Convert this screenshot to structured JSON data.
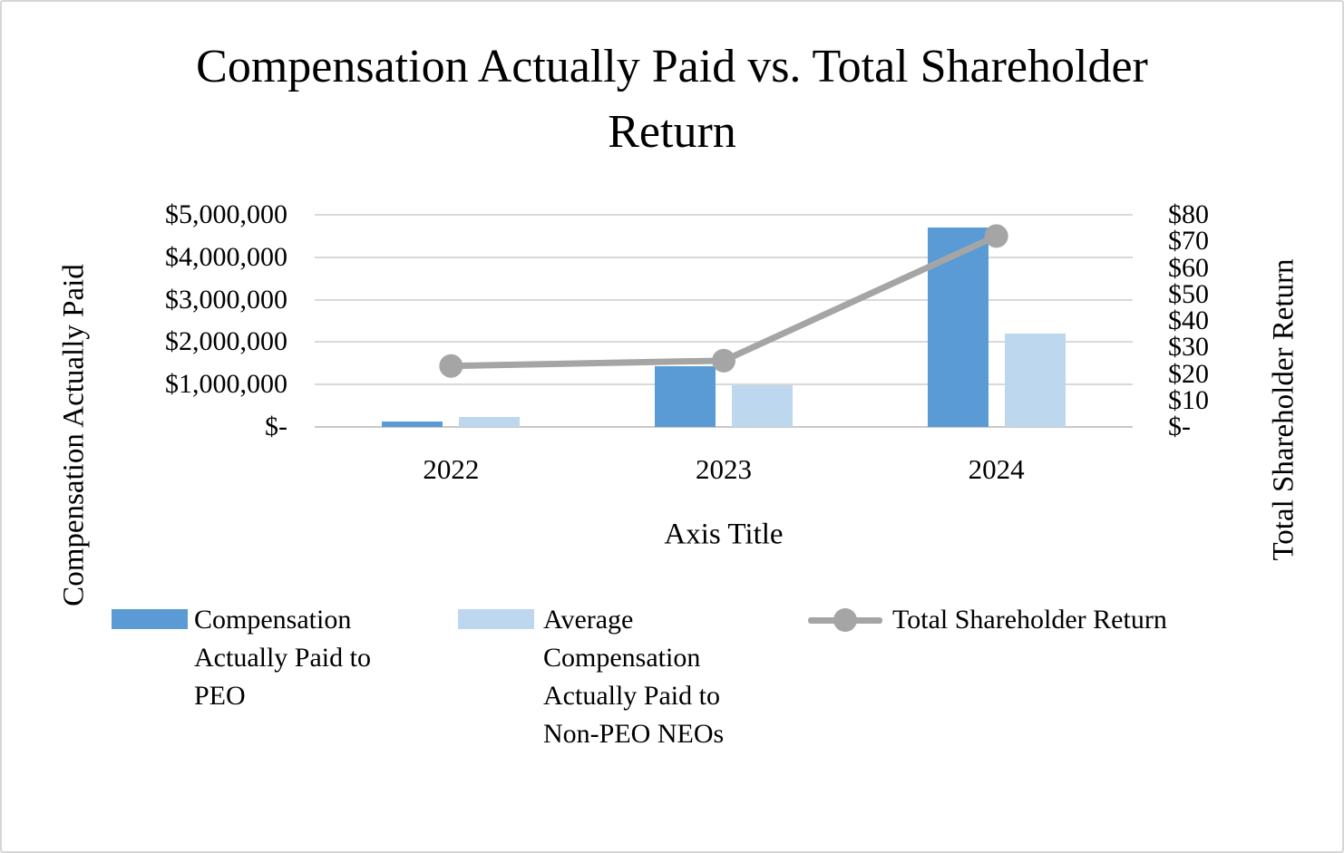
{
  "chart_data": {
    "type": "combo-bar-line",
    "title": "Compensation Actually Paid vs. Total Shareholder\nReturn",
    "categories": [
      "2022",
      "2023",
      "2024"
    ],
    "series": [
      {
        "name": "Compensation Actually Paid to PEO",
        "type": "bar",
        "axis": "left",
        "color": "#5B9BD5",
        "values": [
          125000,
          1440000,
          4700000
        ]
      },
      {
        "name": "Average Compensation Actually Paid to Non-PEO NEOs",
        "type": "bar",
        "axis": "left",
        "color": "#BDD7EE",
        "values": [
          245000,
          980000,
          2200000
        ]
      },
      {
        "name": "Total Shareholder Return",
        "type": "line",
        "axis": "right",
        "color": "#A5A5A5",
        "values": [
          23,
          25,
          72
        ]
      }
    ],
    "left_axis": {
      "title": "Compensation Actually Paid",
      "min": 0,
      "max": 5000000,
      "ticks": [
        "$5,000,000",
        "$4,000,000",
        "$3,000,000",
        "$2,000,000",
        "$1,000,000",
        "$-"
      ]
    },
    "right_axis": {
      "title": "Total Shareholder Return",
      "min": 0,
      "max": 80,
      "ticks": [
        "$80",
        "$70",
        "$60",
        "$50",
        "$40",
        "$30",
        "$20",
        "$10",
        "$-"
      ]
    },
    "x_axis": {
      "title": "Axis Title"
    },
    "grid": "horizontal",
    "legend_position": "bottom",
    "legend": [
      {
        "label": "Compensation\nActually Paid to\nPEO",
        "marker": "bar",
        "color": "#5B9BD5"
      },
      {
        "label": "Average\nCompensation\nActually Paid to\nNon-PEO NEOs",
        "marker": "bar",
        "color": "#BDD7EE"
      },
      {
        "label": "Total Shareholder Return",
        "marker": "line-dot",
        "color": "#A5A5A5"
      }
    ],
    "colors": {
      "gridline": "#D9D9D9",
      "axis_line": "#C9C9C9",
      "text": "#000000"
    }
  }
}
